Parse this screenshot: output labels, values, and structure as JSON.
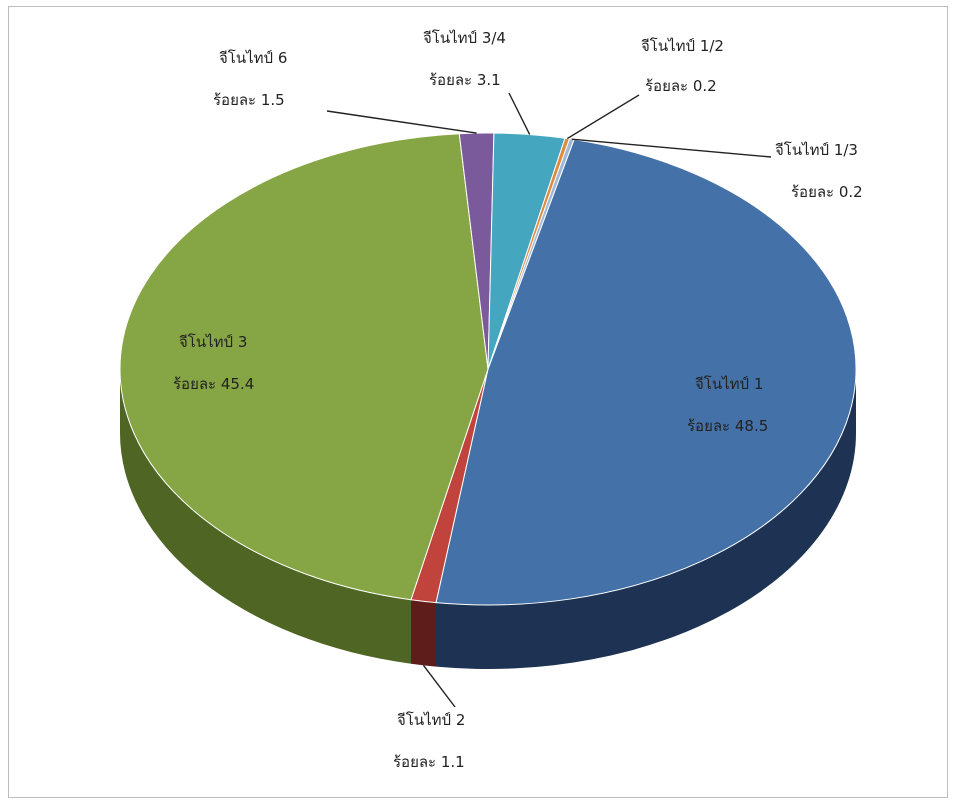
{
  "chart_data": {
    "type": "pie",
    "title": "",
    "legend": "none",
    "slices": [
      {
        "label": "จีโนไทป์ 1",
        "value_label": "ร้อยละ 48.5",
        "value": 48.5,
        "color": "#4472a8",
        "side_color": "#1e3353"
      },
      {
        "label": "จีโนไทป์ 2",
        "value_label": "ร้อยละ 1.1",
        "value": 1.1,
        "color": "#c0433c",
        "side_color": "#5e1d1b"
      },
      {
        "label": "จีโนไทป์ 3",
        "value_label": "ร้อยละ 45.4",
        "value": 45.4,
        "color": "#86a544",
        "side_color": "#4e6524"
      },
      {
        "label": "จีโนไทป์  6",
        "value_label": "ร้อยละ 1.5",
        "value": 1.5,
        "color": "#7b5a9c",
        "side_color": "#3f2c52"
      },
      {
        "label": "จีโนไทป์ 3/4",
        "value_label": "ร้อยละ 3.1",
        "value": 3.1,
        "color": "#45a7bf",
        "side_color": "#215663"
      },
      {
        "label": "จีโนไทป์ 1/2",
        "value_label": "ร้อยละ 0.2",
        "value": 0.2,
        "color": "#e08a3c",
        "side_color": "#7a4a1e"
      },
      {
        "label": "จีโนไทป์ 1/3",
        "value_label": "ร้อยละ 0.2",
        "value": 0.2,
        "color": "#9fb8d9",
        "side_color": "#56657a"
      }
    ]
  }
}
